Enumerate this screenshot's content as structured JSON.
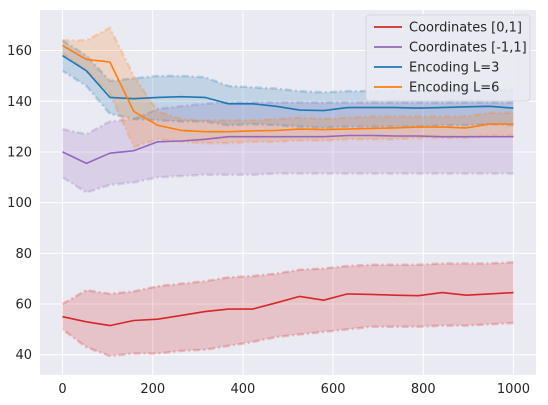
{
  "chart_data": {
    "type": "line",
    "title": "",
    "xlabel": "",
    "ylabel": "",
    "xlim": [
      -50,
      1050
    ],
    "ylim": [
      32,
      176
    ],
    "xticks": [
      0,
      200,
      400,
      600,
      800,
      1000
    ],
    "yticks": [
      40,
      60,
      80,
      100,
      120,
      140,
      160
    ],
    "grid": true,
    "legend_position": "top-right",
    "background": "#eaeaf2",
    "series": [
      {
        "name": "Coordinates [0,1]",
        "color": "#d62728",
        "x": [
          0,
          53,
          105,
          158,
          211,
          263,
          316,
          368,
          421,
          474,
          526,
          579,
          632,
          684,
          737,
          789,
          842,
          895,
          947,
          1000
        ],
        "y": [
          55,
          53,
          51.5,
          53.5,
          54,
          55.5,
          57,
          58,
          58,
          60.5,
          63,
          61.5,
          64,
          63.8,
          63.5,
          63.3,
          64.5,
          63.5,
          64,
          64.5
        ],
        "lower": [
          50,
          43,
          39.5,
          40.5,
          40.5,
          41.5,
          42,
          43.5,
          45,
          47,
          48,
          49,
          50,
          51,
          51,
          51,
          51.5,
          51.5,
          52,
          52.5
        ],
        "upper": [
          60,
          65.5,
          64,
          65,
          67,
          68,
          69,
          70.5,
          71,
          72,
          73.5,
          74,
          75,
          75.5,
          75.5,
          75.5,
          76,
          76,
          76,
          76.5
        ]
      },
      {
        "name": "Coordinates [-1,1]",
        "color": "#9467bd",
        "x": [
          0,
          53,
          105,
          158,
          211,
          263,
          316,
          368,
          421,
          474,
          526,
          579,
          632,
          684,
          737,
          789,
          842,
          895,
          947,
          1000
        ],
        "y": [
          120,
          115.5,
          119.5,
          120.5,
          124,
          124.3,
          125,
          126,
          126,
          126,
          126,
          126,
          126.5,
          126.5,
          126.3,
          126.3,
          126,
          126,
          126,
          126
        ],
        "lower": [
          110,
          104,
          107,
          108,
          110,
          110.5,
          111,
          111,
          111,
          111.5,
          111.5,
          111.5,
          111.5,
          111.5,
          111.5,
          111.5,
          111.5,
          111.5,
          111.5,
          111.5
        ],
        "upper": [
          129,
          127,
          132,
          133,
          137,
          138,
          139,
          139.5,
          139.5,
          139.5,
          139.5,
          139.5,
          139.5,
          139.5,
          139.5,
          139.5,
          139.5,
          139.5,
          139.5,
          139.5
        ]
      },
      {
        "name": "Encoding L=3",
        "color": "#1f77b4",
        "x": [
          0,
          53,
          105,
          158,
          211,
          263,
          316,
          368,
          421,
          474,
          526,
          579,
          632,
          684,
          737,
          789,
          842,
          895,
          947,
          1000
        ],
        "y": [
          158,
          152,
          141.5,
          141,
          141.5,
          141.8,
          141.5,
          139,
          139,
          138,
          136.5,
          136.3,
          137.5,
          137.5,
          137.5,
          137.3,
          137.5,
          137.8,
          138,
          137.3
        ],
        "lower": [
          152,
          146,
          135,
          133,
          132.5,
          132,
          132,
          130.5,
          131,
          130.5,
          130,
          129.5,
          130,
          130,
          130,
          130,
          130.5,
          130.5,
          131,
          130.5
        ],
        "upper": [
          164,
          158,
          148,
          149,
          150,
          150,
          149.5,
          146,
          145.5,
          145,
          144,
          143.5,
          144,
          144,
          144,
          144,
          144.5,
          144.5,
          145,
          144.5
        ]
      },
      {
        "name": "Encoding L=6",
        "color": "#ff7f0e",
        "x": [
          0,
          53,
          105,
          158,
          211,
          263,
          316,
          368,
          421,
          474,
          526,
          579,
          632,
          684,
          737,
          789,
          842,
          895,
          947,
          1000
        ],
        "y": [
          162,
          156.5,
          155.5,
          136,
          130.5,
          128.5,
          128,
          128,
          128.3,
          128.5,
          129,
          128.8,
          129,
          129.3,
          129.5,
          129.8,
          129.8,
          129.5,
          131,
          131
        ],
        "lower": [
          159,
          152,
          143,
          122,
          125,
          124,
          123.5,
          123.5,
          124,
          124,
          124.5,
          124.5,
          125,
          125,
          125,
          125.5,
          125.5,
          125.5,
          126.5,
          126.5
        ],
        "upper": [
          164,
          164,
          169,
          150,
          136,
          133,
          132.5,
          132.5,
          132.5,
          133,
          133.5,
          133,
          133.5,
          134,
          134,
          134,
          134,
          134,
          135.5,
          135.5
        ]
      }
    ]
  }
}
